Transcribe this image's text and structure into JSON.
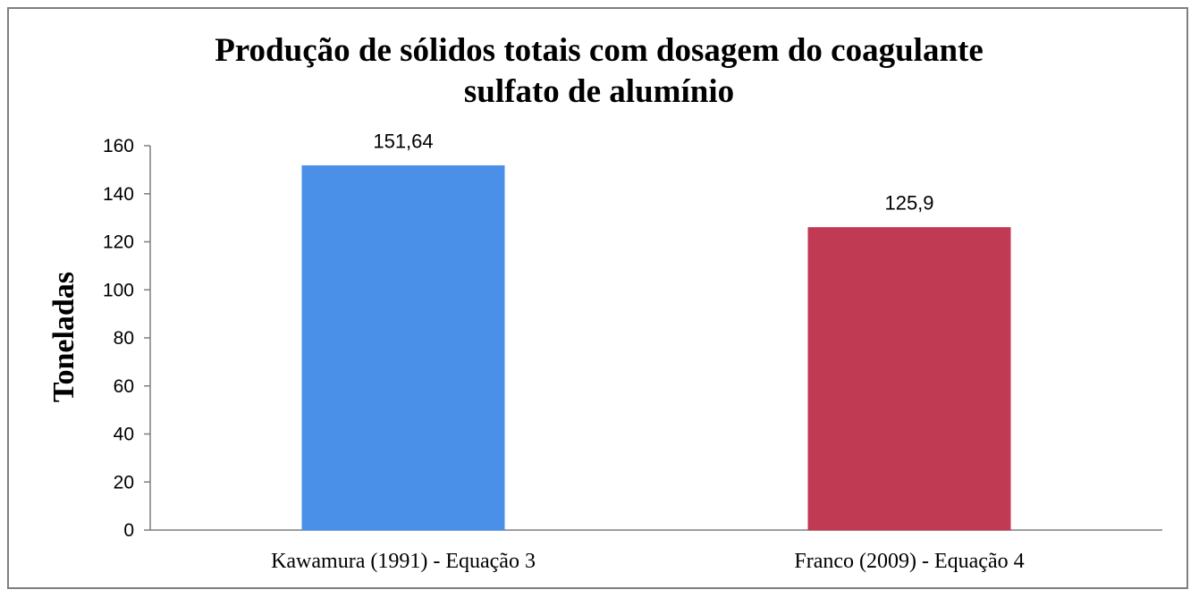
{
  "chart_data": {
    "type": "bar",
    "title_lines": [
      "Produção de sólidos totais com dosagem do coagulante",
      "sulfato de alumínio"
    ],
    "xlabel": "",
    "ylabel": "Toneladas",
    "categories": [
      "Kawamura (1991) - Equação 3",
      "Franco (2009) - Equação 4"
    ],
    "values": [
      151.64,
      125.9
    ],
    "data_labels": [
      "151,64",
      "125,9"
    ],
    "bar_colors": [
      "#4a90e8",
      "#c03a54"
    ],
    "ylim": [
      0,
      160
    ],
    "yticks": [
      0,
      20,
      40,
      60,
      80,
      100,
      120,
      140,
      160
    ],
    "grid": false,
    "legend": "none"
  }
}
